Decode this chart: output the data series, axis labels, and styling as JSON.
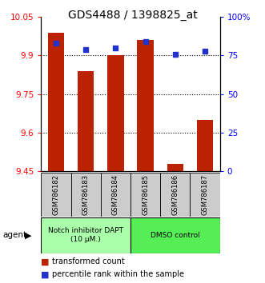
{
  "title": "GDS4488 / 1398825_at",
  "samples": [
    "GSM786182",
    "GSM786183",
    "GSM786184",
    "GSM786185",
    "GSM786186",
    "GSM786187"
  ],
  "red_values": [
    9.99,
    9.84,
    9.9,
    9.96,
    9.48,
    9.65
  ],
  "blue_values": [
    83,
    79,
    80,
    84,
    76,
    78
  ],
  "ymin": 9.45,
  "ymax": 10.05,
  "y2min": 0,
  "y2max": 100,
  "yticks": [
    9.45,
    9.6,
    9.75,
    9.9,
    10.05
  ],
  "ytick_labels": [
    "9.45",
    "9.6",
    "9.75",
    "9.9",
    "10.05"
  ],
  "y2ticks": [
    0,
    25,
    50,
    75,
    100
  ],
  "y2tick_labels": [
    "0",
    "25",
    "50",
    "75",
    "100%"
  ],
  "group1_label": "Notch inhibitor DAPT\n(10 μM.)",
  "group2_label": "DMSO control",
  "group1_color": "#aaffaa",
  "group2_color": "#55ee55",
  "legend1": "transformed count",
  "legend2": "percentile rank within the sample",
  "bar_color": "#bb2200",
  "dot_color": "#2233cc",
  "bar_bottom": 9.45,
  "bar_width": 0.55,
  "bg_color": "#ffffff"
}
